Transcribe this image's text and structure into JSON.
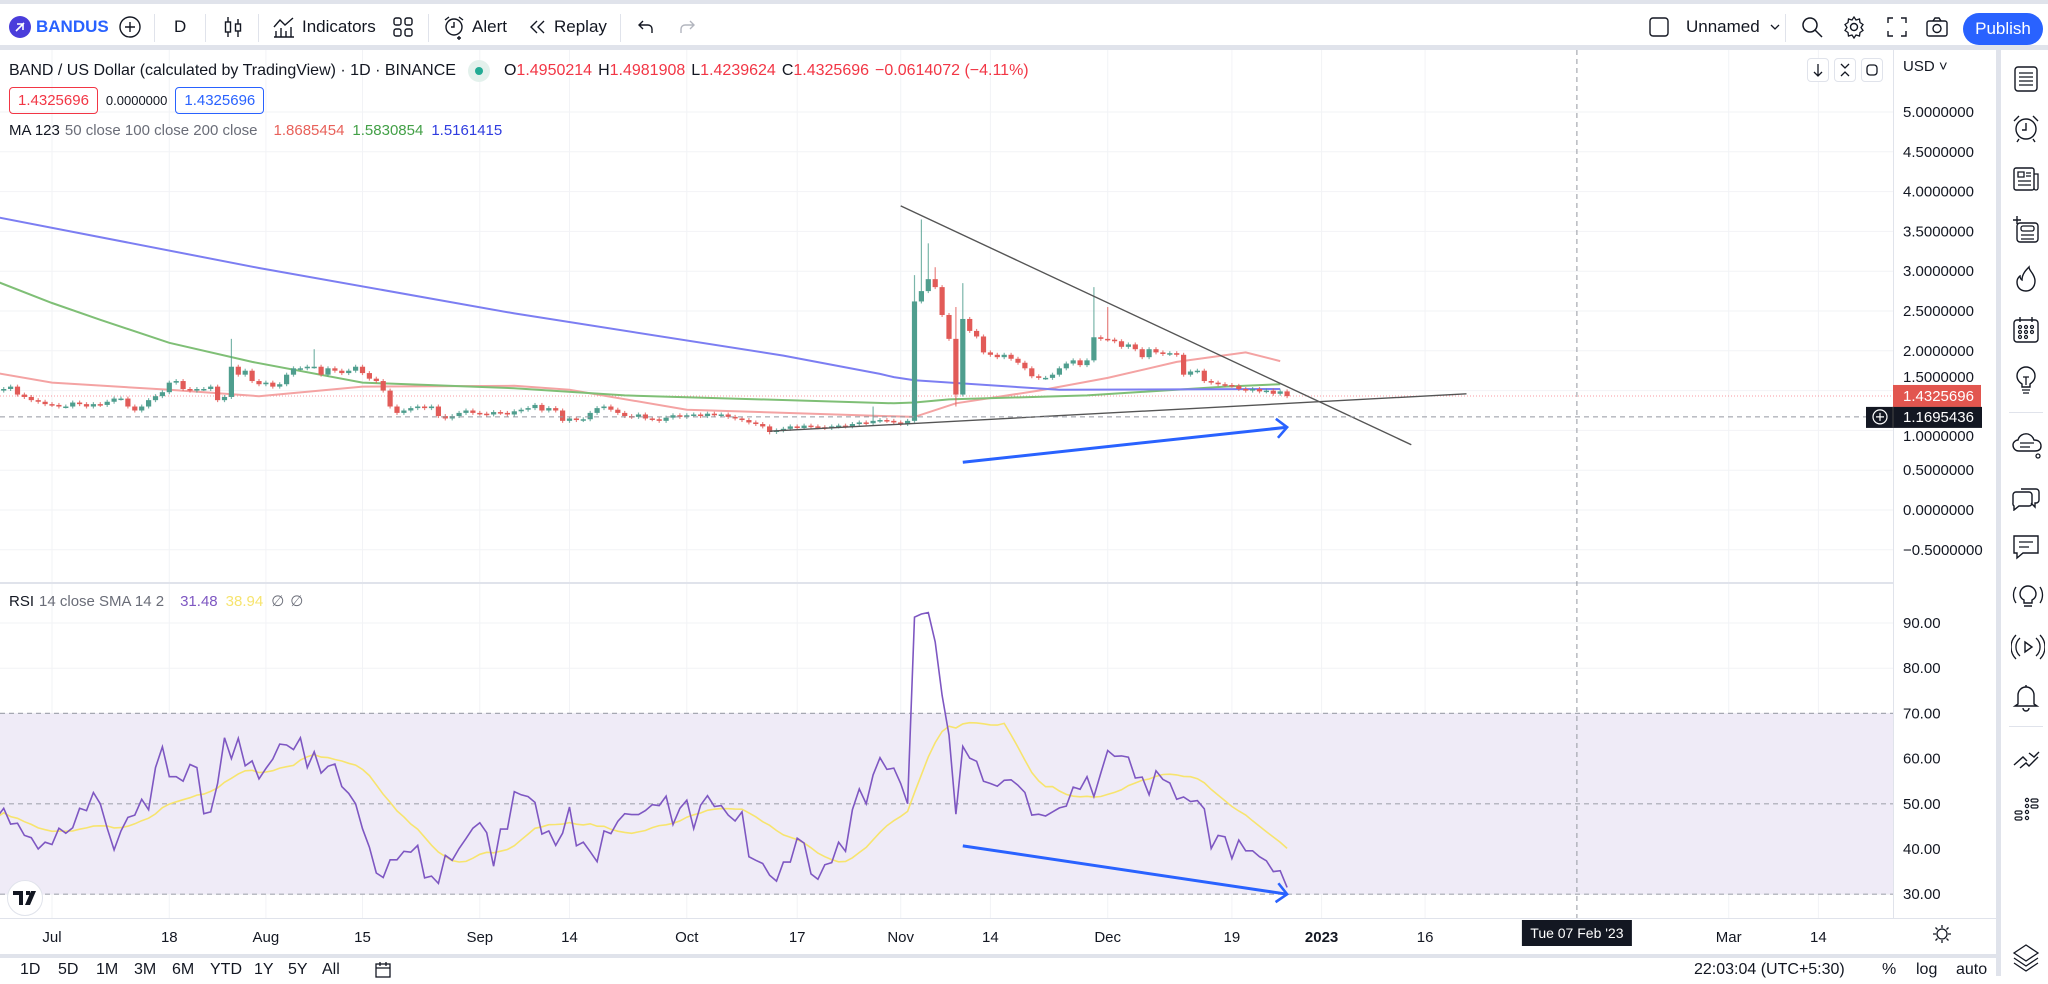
{
  "toolbar": {
    "symbol": "BANDUS",
    "interval": "D",
    "indicators_label": "Indicators",
    "alert_label": "Alert",
    "replay_label": "Replay",
    "layout_name": "Unnamed",
    "publish_label": "Publish",
    "accent_color": "#2962ff"
  },
  "legend": {
    "title": "BAND / US Dollar (calculated by TradingView) · 1D · BINANCE",
    "open_label": "O",
    "open": "1.4950214",
    "high_label": "H",
    "high": "1.4981908",
    "low_label": "L",
    "low": "1.4239624",
    "close_label": "C",
    "close": "1.4325696",
    "change": "−0.0614072 (−4.11%)",
    "bid": "1.4325696",
    "spread": "0.0000000",
    "ask": "1.4325696",
    "ma_name": "MA 123",
    "ma_params": "50 close 100 close 200 close",
    "ma50": "1.8685454",
    "ma100": "1.5830854",
    "ma200": "1.5161415"
  },
  "rsi_legend": {
    "name": "RSI",
    "params": "14 close SMA 14 2",
    "rsi": "31.48",
    "sma": "38.94",
    "extra1": "∅",
    "extra2": "∅"
  },
  "price_axis": {
    "currency": "USD",
    "ticks": [
      "5.0000000",
      "4.5000000",
      "4.0000000",
      "3.5000000",
      "3.0000000",
      "2.5000000",
      "2.0000000",
      "1.5000000",
      "1.0000000",
      "0.5000000",
      "0.0000000",
      "−0.5000000"
    ],
    "tick_values": [
      5,
      4.5,
      4,
      3.5,
      3,
      2.5,
      2,
      1.5,
      1,
      0.5,
      0,
      -0.5
    ],
    "last_price": "1.4325696",
    "last_price_value": 1.4325696,
    "crosshair_price": "1.1695436",
    "crosshair_price_value": 1.1695436
  },
  "rsi_axis": {
    "ticks": [
      "90.00",
      "80.00",
      "70.00",
      "60.00",
      "50.00",
      "40.00",
      "30.00"
    ],
    "tick_values": [
      90,
      80,
      70,
      60,
      50,
      40,
      30
    ],
    "bands": [
      70,
      50,
      30
    ]
  },
  "time_axis": {
    "ticks": [
      {
        "label": "Jul",
        "date": "2022-07-01"
      },
      {
        "label": "18",
        "date": "2022-07-18"
      },
      {
        "label": "Aug",
        "date": "2022-08-01"
      },
      {
        "label": "15",
        "date": "2022-08-15"
      },
      {
        "label": "Sep",
        "date": "2022-09-01"
      },
      {
        "label": "14",
        "date": "2022-09-14"
      },
      {
        "label": "Oct",
        "date": "2022-10-01"
      },
      {
        "label": "17",
        "date": "2022-10-17"
      },
      {
        "label": "Nov",
        "date": "2022-11-01"
      },
      {
        "label": "14",
        "date": "2022-11-14"
      },
      {
        "label": "Dec",
        "date": "2022-12-01"
      },
      {
        "label": "19",
        "date": "2022-12-19"
      },
      {
        "label": "2023",
        "date": "2023-01-01",
        "bold": true
      },
      {
        "label": "16",
        "date": "2023-01-16"
      },
      {
        "label": "Mar",
        "date": "2023-03-01"
      },
      {
        "label": "14",
        "date": "2023-03-14"
      }
    ],
    "crosshair_label": "Tue 07 Feb '23",
    "crosshair_date": "2023-02-07"
  },
  "bottom_bar": {
    "ranges": [
      "1D",
      "5D",
      "1M",
      "3M",
      "6M",
      "YTD",
      "1Y",
      "5Y",
      "All"
    ],
    "clock": "22:03:04 (UTC+5:30)",
    "percent": "%",
    "log": "log",
    "auto": "auto"
  },
  "chart_data": {
    "type": "candlestick",
    "x_range": [
      "2022-06-23",
      "2023-03-20"
    ],
    "y_range": [
      -0.6,
      5.3
    ],
    "start_date": "2022-06-23",
    "closes": [
      1.5,
      1.52,
      1.55,
      1.45,
      1.42,
      1.38,
      1.36,
      1.33,
      1.32,
      1.3,
      1.3,
      1.35,
      1.33,
      1.3,
      1.33,
      1.32,
      1.36,
      1.4,
      1.4,
      1.3,
      1.25,
      1.3,
      1.38,
      1.43,
      1.48,
      1.6,
      1.62,
      1.52,
      1.5,
      1.52,
      1.52,
      1.55,
      1.38,
      1.42,
      1.8,
      1.7,
      1.75,
      1.62,
      1.58,
      1.6,
      1.55,
      1.58,
      1.7,
      1.78,
      1.78,
      1.8,
      1.8,
      1.7,
      1.78,
      1.75,
      1.72,
      1.75,
      1.8,
      1.72,
      1.65,
      1.62,
      1.5,
      1.3,
      1.22,
      1.25,
      1.28,
      1.3,
      1.28,
      1.3,
      1.18,
      1.15,
      1.18,
      1.22,
      1.25,
      1.22,
      1.21,
      1.2,
      1.23,
      1.22,
      1.2,
      1.24,
      1.26,
      1.28,
      1.32,
      1.25,
      1.28,
      1.25,
      1.12,
      1.15,
      1.13,
      1.14,
      1.22,
      1.28,
      1.3,
      1.26,
      1.22,
      1.18,
      1.17,
      1.2,
      1.15,
      1.14,
      1.12,
      1.16,
      1.19,
      1.17,
      1.19,
      1.2,
      1.18,
      1.21,
      1.19,
      1.2,
      1.17,
      1.15,
      1.13,
      1.1,
      1.08,
      1.05,
      0.98,
      1.0,
      1.02,
      1.05,
      1.03,
      1.06,
      1.05,
      1.04,
      1.03,
      1.05,
      1.06,
      1.05,
      1.08,
      1.1,
      1.09,
      1.12,
      1.13,
      1.12,
      1.1,
      1.08,
      1.12,
      2.62,
      2.75,
      2.9,
      2.8,
      2.45,
      2.15,
      1.45,
      2.4,
      2.25,
      2.18,
      1.98,
      1.95,
      1.92,
      1.95,
      1.9,
      1.85,
      1.78,
      1.68,
      1.66,
      1.66,
      1.7,
      1.78,
      1.84,
      1.88,
      1.82,
      1.88,
      2.17,
      2.15,
      2.14,
      2.12,
      2.05,
      2.08,
      2.02,
      1.92,
      2.02,
      1.98,
      1.96,
      1.97,
      1.95,
      1.7,
      1.74,
      1.75,
      1.62,
      1.6,
      1.58,
      1.57,
      1.56,
      1.52,
      1.5,
      1.52,
      1.49,
      1.5,
      1.46,
      1.49,
      1.43
    ],
    "notable_highs": {
      "2022-07-27": 2.15,
      "2022-08-08": 2.02,
      "2022-11-03": 2.95,
      "2022-11-04": 3.65,
      "2022-11-05": 3.35,
      "2022-11-06": 3.05,
      "2022-11-09": 2.55,
      "2022-11-10": 2.85,
      "2022-11-29": 2.8,
      "2022-12-01": 2.55,
      "2022-10-28": 1.3
    },
    "notable_lows": {
      "2022-11-09": 1.3,
      "2022-10-13": 0.95
    },
    "up_color": "#4f9e8e",
    "down_color": "#e25b58",
    "moving_averages": [
      {
        "name": "MA50",
        "color": "#f4a3a3",
        "points": [
          [
            "2022-06-23",
            1.72
          ],
          [
            "2022-07-01",
            1.6
          ],
          [
            "2022-07-18",
            1.51
          ],
          [
            "2022-07-31",
            1.43
          ],
          [
            "2022-08-15",
            1.55
          ],
          [
            "2022-09-06",
            1.56
          ],
          [
            "2022-09-14",
            1.51
          ],
          [
            "2022-10-01",
            1.26
          ],
          [
            "2022-10-26",
            1.19
          ],
          [
            "2022-11-03",
            1.17
          ],
          [
            "2022-11-09",
            1.34
          ],
          [
            "2022-11-21",
            1.5
          ],
          [
            "2022-12-01",
            1.66
          ],
          [
            "2022-12-11",
            1.86
          ],
          [
            "2022-12-21",
            1.98
          ],
          [
            "2022-12-26",
            1.87
          ]
        ]
      },
      {
        "name": "MA100",
        "color": "#7fbf76",
        "points": [
          [
            "2022-06-23",
            2.87
          ],
          [
            "2022-07-01",
            2.6
          ],
          [
            "2022-07-08",
            2.39
          ],
          [
            "2022-07-18",
            2.1
          ],
          [
            "2022-07-30",
            1.86
          ],
          [
            "2022-08-15",
            1.6
          ],
          [
            "2022-09-06",
            1.53
          ],
          [
            "2022-09-22",
            1.44
          ],
          [
            "2022-10-31",
            1.34
          ],
          [
            "2022-11-03",
            1.35
          ],
          [
            "2022-11-08",
            1.39
          ],
          [
            "2022-11-28",
            1.44
          ],
          [
            "2022-12-18",
            1.55
          ],
          [
            "2022-12-26",
            1.58
          ]
        ]
      },
      {
        "name": "MA200",
        "color": "#7c7ef2",
        "points": [
          [
            "2022-06-23",
            3.68
          ],
          [
            "2022-07-31",
            3.04
          ],
          [
            "2022-09-06",
            2.47
          ],
          [
            "2022-10-15",
            1.94
          ],
          [
            "2022-10-29",
            1.71
          ],
          [
            "2022-10-31",
            1.67
          ],
          [
            "2022-11-03",
            1.63
          ],
          [
            "2022-11-24",
            1.51
          ],
          [
            "2022-12-26",
            1.52
          ]
        ]
      }
    ],
    "drawings": [
      {
        "kind": "trendline",
        "color": "#555555",
        "from": [
          "2022-11-01",
          3.82
        ],
        "to": [
          "2023-01-14",
          0.82
        ]
      },
      {
        "kind": "trendline",
        "color": "#555555",
        "from": [
          "2022-10-13",
          0.99
        ],
        "to": [
          "2023-01-22",
          1.46
        ]
      },
      {
        "kind": "arrow",
        "color": "#2962ff",
        "from": [
          "2022-11-10",
          0.6
        ],
        "to": [
          "2022-12-27",
          1.04
        ]
      }
    ],
    "rsi": {
      "line_color": "#7e57c2",
      "sma_color": "#f7e46e",
      "band_fill": "#efebf7",
      "range": [
        25,
        95
      ],
      "values": [
        47,
        49,
        45.5,
        45.7,
        43,
        42.5,
        40,
        41.5,
        41,
        44.6,
        43.5,
        44.7,
        49,
        48.5,
        52.5,
        50,
        44.6,
        39.8,
        44,
        47,
        47.5,
        51,
        48.7,
        58,
        62.6,
        56,
        56,
        55,
        58.7,
        58,
        47.8,
        48.2,
        54.5,
        64.6,
        60,
        64.5,
        58.4,
        59.5,
        55.5,
        57.8,
        59.9,
        63.2,
        63,
        62,
        64.6,
        58,
        61.5,
        56.8,
        58.3,
        58.8,
        53.8,
        52.3,
        50,
        44.5,
        40.4,
        34.7,
        33.7,
        37.6,
        37.6,
        39.5,
        39.3,
        40.8,
        33.6,
        34,
        32.4,
        38.6,
        37.5,
        40.1,
        42.3,
        44.6,
        45.8,
        43.6,
        36.2,
        44.4,
        44.4,
        52.7,
        52,
        51.6,
        50.3,
        43.3,
        44,
        40.8,
        43.5,
        49.3,
        40.7,
        41.5,
        39.4,
        37.2,
        44,
        43.4,
        46.1,
        47.8,
        47.6,
        47.6,
        48.5,
        49.8,
        49.6,
        51.7,
        45.4,
        49,
        50.8,
        44.5,
        49.7,
        51.8,
        49.4,
        49.6,
        47.5,
        46.2,
        48.2,
        38.3,
        37.5,
        36.8,
        34.2,
        32.9,
        37.1,
        37.1,
        42.4,
        41.3,
        34.5,
        33.3,
        36.5,
        37,
        41.5,
        39.5,
        48.7,
        53.3,
        50,
        56.4,
        60.2,
        57.6,
        57.9,
        54.5,
        50,
        91.3,
        92,
        92.3,
        85.8,
        74,
        65.2,
        47.7,
        62.7,
        60.1,
        59.4,
        55,
        54.5,
        53.9,
        55.2,
        55.3,
        54.1,
        52.5,
        47.5,
        47.7,
        47.3,
        48.2,
        49.1,
        49.5,
        53.7,
        53.2,
        56,
        51.6,
        56.8,
        61.8,
        60.5,
        60.6,
        60.3,
        55.7,
        55.9,
        52,
        57.3,
        55.4,
        54.6,
        51,
        51.5,
        50.5,
        50.7,
        48.9,
        40.1,
        43,
        42.7,
        37.9,
        42,
        39.6,
        39.6,
        38.3,
        37.4,
        35,
        35.2,
        31.5
      ],
      "drawings": [
        {
          "kind": "arrow",
          "color": "#2962ff",
          "from": [
            "2022-11-10",
            40.7
          ],
          "to": [
            "2022-12-27",
            30.0
          ]
        }
      ]
    }
  }
}
